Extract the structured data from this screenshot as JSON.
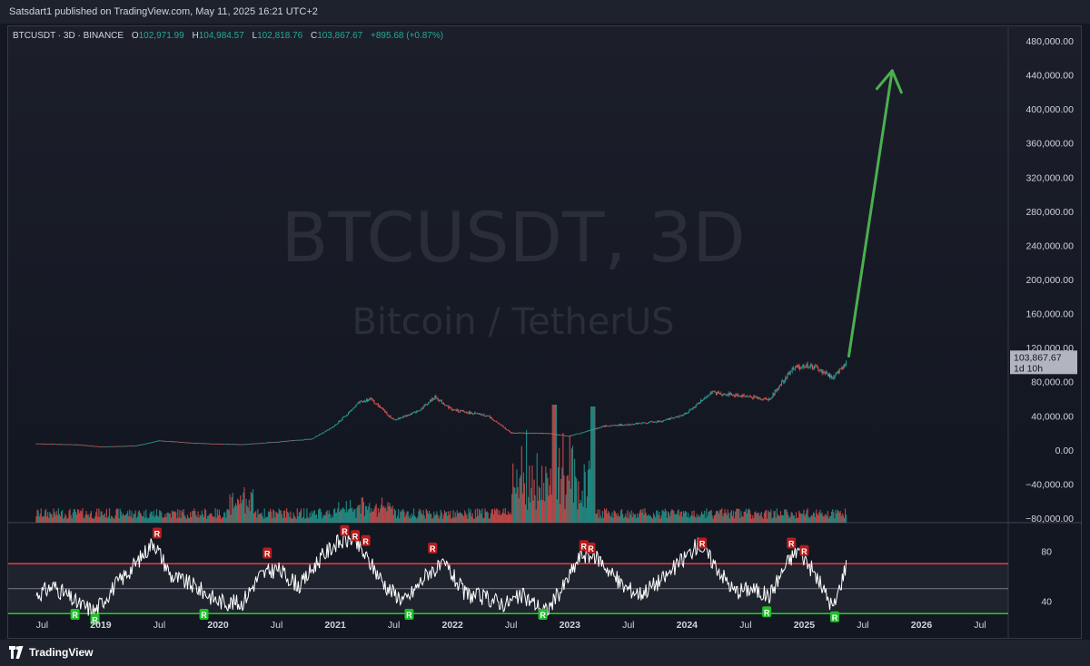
{
  "header": {
    "publish_text": "Satsdart1 published on TradingView.com, May 11, 2025 16:21 UTC+2"
  },
  "legend": {
    "symbol": "BTCUSDT · 3D · BINANCE",
    "o_label": "O",
    "o_value": "102,971.99",
    "h_label": "H",
    "h_value": "104,984.57",
    "l_label": "L",
    "l_value": "102,818.76",
    "c_label": "C",
    "c_value": "103,867.67",
    "change": "+895.68 (+0.87%)"
  },
  "watermark": {
    "line1": "BTCUSDT, 3D",
    "line2": "Bitcoin / TetherUS"
  },
  "price_tag": {
    "price": "103,867.67",
    "countdown": "1d 10h"
  },
  "footer": {
    "brand": "TradingView"
  },
  "colors": {
    "up": "#26a69a",
    "down": "#ef5350",
    "arrow": "#4caf50",
    "rsi_upper": "#f23645",
    "rsi_lower": "#22d11a",
    "rsi_line": "#ffffff"
  },
  "chart_data": [
    {
      "type": "line",
      "title": "BTCUSDT, 3D",
      "y_ticks": [
        "480,000.00",
        "440,000.00",
        "400,000.00",
        "360,000.00",
        "320,000.00",
        "280,000.00",
        "240,000.00",
        "200,000.00",
        "160,000.00",
        "120,000.00",
        "80,000.00",
        "40,000.00",
        "0.00",
        "−40,000.00",
        "−80,000.00"
      ],
      "ylim": [
        -80000,
        480000
      ],
      "x_ticks": [
        "Jul",
        "2019",
        "Jul",
        "2020",
        "Jul",
        "2021",
        "Jul",
        "2022",
        "Jul",
        "2023",
        "Jul",
        "2024",
        "Jul",
        "2025",
        "Jul",
        "2026",
        "Jul"
      ],
      "x": [
        2018.45,
        2018.8,
        2019.0,
        2019.3,
        2019.5,
        2019.8,
        2020.0,
        2020.2,
        2020.5,
        2020.8,
        2021.0,
        2021.2,
        2021.3,
        2021.5,
        2021.7,
        2021.85,
        2022.0,
        2022.3,
        2022.5,
        2022.8,
        2023.0,
        2023.3,
        2023.5,
        2023.8,
        2024.0,
        2024.2,
        2024.5,
        2024.7,
        2024.9,
        2025.0,
        2025.1,
        2025.25,
        2025.36
      ],
      "series": [
        {
          "values": [
            7500,
            6300,
            3800,
            5000,
            11000,
            8000,
            7200,
            6500,
            9500,
            13000,
            29000,
            55000,
            60000,
            35000,
            45000,
            62000,
            47000,
            40000,
            20000,
            19500,
            16600,
            28000,
            30000,
            34000,
            43000,
            67000,
            63000,
            59000,
            95000,
            99000,
            96000,
            84000,
            103868
          ]
        }
      ],
      "projection_arrow": {
        "from": [
          2025.38,
          110000
        ],
        "to": [
          2025.75,
          445000
        ]
      }
    },
    {
      "type": "line",
      "title": "RSI",
      "y_ticks": [
        "80",
        "40"
      ],
      "levels": [
        70,
        30
      ],
      "ylim": [
        20,
        100
      ],
      "x": [
        2018.45,
        2018.6,
        2018.8,
        2018.95,
        2019.1,
        2019.3,
        2019.45,
        2019.6,
        2019.8,
        2020.0,
        2020.2,
        2020.35,
        2020.5,
        2020.7,
        2020.85,
        2021.0,
        2021.15,
        2021.3,
        2021.45,
        2021.6,
        2021.8,
        2021.95,
        2022.1,
        2022.3,
        2022.45,
        2022.6,
        2022.8,
        2022.95,
        2023.1,
        2023.25,
        2023.45,
        2023.6,
        2023.8,
        2023.95,
        2024.1,
        2024.25,
        2024.4,
        2024.55,
        2024.7,
        2024.85,
        2024.95,
        2025.1,
        2025.25,
        2025.36
      ],
      "series": [
        {
          "values": [
            45,
            52,
            38,
            32,
            50,
            70,
            88,
            60,
            52,
            40,
            38,
            60,
            66,
            52,
            72,
            86,
            90,
            70,
            50,
            40,
            64,
            68,
            46,
            42,
            38,
            44,
            32,
            52,
            78,
            74,
            52,
            46,
            58,
            72,
            86,
            68,
            48,
            50,
            44,
            70,
            82,
            60,
            34,
            70
          ]
        }
      ],
      "markers": [
        {
          "label": "R",
          "x": 2019.48,
          "v": 88,
          "kind": "bear"
        },
        {
          "label": "R",
          "x": 2020.42,
          "v": 72,
          "kind": "bear"
        },
        {
          "label": "R",
          "x": 2021.08,
          "v": 90,
          "kind": "bear"
        },
        {
          "label": "R",
          "x": 2021.17,
          "v": 86,
          "kind": "bear"
        },
        {
          "label": "R",
          "x": 2021.26,
          "v": 82,
          "kind": "bear"
        },
        {
          "label": "R",
          "x": 2021.83,
          "v": 76,
          "kind": "bear"
        },
        {
          "label": "R",
          "x": 2023.12,
          "v": 78,
          "kind": "bear"
        },
        {
          "label": "R",
          "x": 2023.18,
          "v": 76,
          "kind": "bear"
        },
        {
          "label": "R",
          "x": 2024.13,
          "v": 80,
          "kind": "bear"
        },
        {
          "label": "R",
          "x": 2024.89,
          "v": 80,
          "kind": "bear"
        },
        {
          "label": "R",
          "x": 2025.0,
          "v": 74,
          "kind": "bear"
        },
        {
          "label": "R",
          "x": 2018.78,
          "v": 36,
          "kind": "bull"
        },
        {
          "label": "R",
          "x": 2018.95,
          "v": 32,
          "kind": "bull"
        },
        {
          "label": "R",
          "x": 2019.88,
          "v": 36,
          "kind": "bull"
        },
        {
          "label": "R",
          "x": 2021.63,
          "v": 36,
          "kind": "bull"
        },
        {
          "label": "R",
          "x": 2022.77,
          "v": 36,
          "kind": "bull"
        },
        {
          "label": "R",
          "x": 2024.68,
          "v": 38,
          "kind": "bull"
        },
        {
          "label": "R",
          "x": 2025.26,
          "v": 34,
          "kind": "bull"
        }
      ]
    }
  ]
}
